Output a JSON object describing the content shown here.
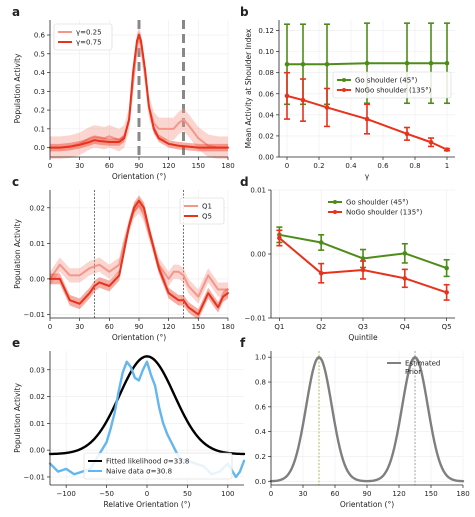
{
  "chart_data": [
    {
      "panel": "a",
      "type": "line",
      "xlabel": "Orientation (°)",
      "ylabel": "Population Activity",
      "xlim": [
        0,
        180
      ],
      "ylim": [
        -0.05,
        0.68
      ],
      "xticks": [
        0,
        30,
        60,
        90,
        120,
        150,
        180
      ],
      "yticks": [
        0.0,
        0.1,
        0.2,
        0.3,
        0.4,
        0.5,
        0.6
      ],
      "ytick_labels": [
        "0.0",
        "0.1",
        "0.2",
        "0.3",
        "0.4",
        "0.5",
        "0.6"
      ],
      "legend_position": "top-left",
      "vlines": [
        90,
        135
      ],
      "series": [
        {
          "name": "γ=0.25",
          "color": "#f4978a",
          "band": 0.06,
          "x": [
            0,
            10,
            20,
            30,
            40,
            45,
            50,
            55,
            60,
            65,
            70,
            75,
            80,
            84,
            88,
            90,
            92,
            96,
            100,
            105,
            110,
            115,
            120,
            125,
            130,
            135,
            140,
            150,
            160,
            170,
            180
          ],
          "y": [
            0.0,
            0.0,
            0.005,
            0.02,
            0.05,
            0.06,
            0.055,
            0.05,
            0.06,
            0.05,
            0.04,
            0.06,
            0.15,
            0.35,
            0.55,
            0.58,
            0.55,
            0.4,
            0.22,
            0.13,
            0.1,
            0.1,
            0.1,
            0.1,
            0.13,
            0.15,
            0.12,
            0.05,
            0.01,
            0.0,
            0.0
          ]
        },
        {
          "name": "γ=0.75",
          "color": "#e8321c",
          "band": 0.02,
          "x": [
            0,
            10,
            20,
            30,
            40,
            45,
            50,
            60,
            70,
            75,
            80,
            84,
            88,
            90,
            92,
            96,
            100,
            105,
            110,
            120,
            130,
            140,
            150,
            160,
            170,
            180
          ],
          "y": [
            0.0,
            0.0,
            0.005,
            0.015,
            0.03,
            0.04,
            0.035,
            0.03,
            0.03,
            0.05,
            0.15,
            0.4,
            0.57,
            0.6,
            0.57,
            0.42,
            0.22,
            0.1,
            0.05,
            0.02,
            0.01,
            0.005,
            0.0,
            0.0,
            0.0,
            0.0
          ]
        }
      ]
    },
    {
      "panel": "b",
      "type": "line",
      "xlabel": "γ",
      "ylabel": "Mean Activity at Shoulder Index",
      "xlim": [
        -0.05,
        1.05
      ],
      "ylim": [
        0.0,
        0.13
      ],
      "xticks": [
        0.0,
        0.2,
        0.4,
        0.6,
        0.8,
        1.0
      ],
      "yticks": [
        0.0,
        0.02,
        0.04,
        0.06,
        0.08,
        0.1,
        0.12
      ],
      "ytick_labels": [
        "0.00",
        "0.02",
        "0.04",
        "0.06",
        "0.08",
        "0.10",
        "0.12"
      ],
      "legend_position": "center-right",
      "series": [
        {
          "name": "Go shoulder (45°)",
          "color": "#4e8c1a",
          "x": [
            0.0,
            0.1,
            0.25,
            0.5,
            0.75,
            0.9,
            1.0
          ],
          "y": [
            0.088,
            0.088,
            0.088,
            0.089,
            0.089,
            0.089,
            0.089
          ],
          "err": [
            0.038,
            0.038,
            0.038,
            0.038,
            0.038,
            0.038,
            0.038
          ]
        },
        {
          "name": "NoGo shoulder (135°)",
          "color": "#e8321c",
          "x": [
            0.0,
            0.1,
            0.25,
            0.5,
            0.75,
            0.9,
            1.0
          ],
          "y": [
            0.058,
            0.054,
            0.047,
            0.036,
            0.022,
            0.014,
            0.007
          ],
          "err": [
            0.022,
            0.02,
            0.018,
            0.014,
            0.006,
            0.004,
            0.001
          ]
        }
      ]
    },
    {
      "panel": "c",
      "type": "line",
      "xlabel": "Orientation (°)",
      "ylabel": "Population Activity",
      "xlim": [
        0,
        180
      ],
      "ylim": [
        -0.011,
        0.025
      ],
      "xticks": [
        0,
        30,
        60,
        90,
        120,
        150,
        180
      ],
      "yticks": [
        -0.01,
        0.0,
        0.01,
        0.02
      ],
      "ytick_labels": [
        "−0.01",
        "0.00",
        "0.01",
        "0.02"
      ],
      "legend_position": "top-right",
      "vlines": [
        45,
        135
      ],
      "series": [
        {
          "name": "Q1",
          "color": "#f4978a",
          "band": 0.002,
          "x": [
            0,
            10,
            20,
            30,
            40,
            45,
            50,
            60,
            70,
            75,
            80,
            85,
            90,
            95,
            100,
            110,
            120,
            125,
            130,
            135,
            140,
            150,
            160,
            170,
            175,
            180
          ],
          "y": [
            0.0,
            0.004,
            0.001,
            0.001,
            0.003,
            0.0035,
            0.004,
            0.002,
            0.004,
            0.01,
            0.015,
            0.019,
            0.0205,
            0.018,
            0.013,
            0.004,
            0.0,
            0.002,
            0.002,
            0.001,
            -0.002,
            -0.005,
            0.001,
            -0.003,
            -0.003,
            -0.003
          ]
        },
        {
          "name": "Q5",
          "color": "#e8321c",
          "band": 0.0015,
          "x": [
            0,
            10,
            20,
            30,
            40,
            45,
            50,
            60,
            70,
            75,
            80,
            85,
            90,
            95,
            100,
            110,
            120,
            125,
            130,
            135,
            140,
            150,
            160,
            170,
            175,
            180
          ],
          "y": [
            0.0,
            0.0,
            -0.006,
            -0.007,
            -0.004,
            -0.002,
            -0.001,
            -0.002,
            0.001,
            0.008,
            0.015,
            0.02,
            0.022,
            0.02,
            0.014,
            0.003,
            -0.004,
            -0.005,
            -0.006,
            -0.006,
            -0.008,
            -0.01,
            -0.004,
            -0.008,
            -0.005,
            -0.004
          ]
        }
      ]
    },
    {
      "panel": "d",
      "type": "line",
      "xlabel": "Quintile",
      "ylabel": "",
      "categories": [
        "Q1",
        "Q2",
        "Q3",
        "Q4",
        "Q5"
      ],
      "ylim": [
        -0.01,
        0.01
      ],
      "yticks": [
        -0.01,
        0.0,
        0.01
      ],
      "ytick_labels": [
        "−0.01",
        "0.00",
        "0.01"
      ],
      "legend_position": "top-right",
      "series": [
        {
          "name": "Go shoulder (45°)",
          "color": "#4e8c1a",
          "values": [
            0.003,
            0.0018,
            -0.0007,
            0.0001,
            -0.0022
          ],
          "err": [
            0.0012,
            0.0012,
            0.0014,
            0.0015,
            0.0013
          ]
        },
        {
          "name": "NoGo shoulder (135°)",
          "color": "#e8321c",
          "values": [
            0.0025,
            -0.003,
            -0.0025,
            -0.0038,
            -0.006
          ],
          "err": [
            0.0012,
            0.0015,
            0.0014,
            0.0014,
            0.0012
          ]
        }
      ]
    },
    {
      "panel": "e",
      "type": "line",
      "xlabel": "Relative Orientation (°)",
      "ylabel": "Population Activity",
      "xlim": [
        -120,
        120
      ],
      "ylim": [
        -0.013,
        0.037
      ],
      "xticks": [
        -100,
        -50,
        0,
        50,
        100
      ],
      "xtick_labels": [
        "−100",
        "−50",
        "0",
        "50",
        "100"
      ],
      "yticks": [
        -0.01,
        0.0,
        0.01,
        0.02,
        0.03
      ],
      "ytick_labels": [
        "−0.01",
        "0.00",
        "0.01",
        "0.02",
        "0.03"
      ],
      "legend_position": "bottom-right",
      "series": [
        {
          "name": "Fitted likelihood σ=33.8",
          "color": "#000000",
          "sigma": 33.8,
          "amplitude": 0.0365,
          "offset": -0.0015
        },
        {
          "name": "Naive data σ=30.8",
          "color": "#63b6f0",
          "x": [
            -120,
            -110,
            -100,
            -90,
            -80,
            -70,
            -60,
            -50,
            -45,
            -40,
            -35,
            -30,
            -25,
            -20,
            -15,
            -10,
            -5,
            0,
            5,
            10,
            15,
            20,
            25,
            30,
            35,
            40,
            50,
            60,
            70,
            80,
            90,
            100,
            110,
            115,
            120
          ],
          "y": [
            -0.005,
            -0.008,
            -0.007,
            -0.009,
            -0.008,
            -0.007,
            -0.002,
            0.003,
            0.008,
            0.014,
            0.022,
            0.029,
            0.033,
            0.031,
            0.027,
            0.026,
            0.03,
            0.033,
            0.028,
            0.024,
            0.016,
            0.01,
            0.006,
            0.003,
            0.0,
            -0.003,
            -0.004,
            -0.005,
            -0.006,
            -0.009,
            -0.008,
            -0.005,
            -0.01,
            -0.008,
            -0.004
          ]
        }
      ]
    },
    {
      "panel": "f",
      "type": "line",
      "xlabel": "Orientation (°)",
      "ylabel": "",
      "xlim": [
        0,
        180
      ],
      "ylim": [
        -0.03,
        1.05
      ],
      "xticks": [
        0,
        30,
        60,
        90,
        120,
        150,
        180
      ],
      "yticks": [
        0.0,
        0.2,
        0.4,
        0.6,
        0.8,
        1.0
      ],
      "ytick_labels": [
        "0.0",
        "0.2",
        "0.4",
        "0.6",
        "0.8",
        "1.0"
      ],
      "legend_position": "top-right",
      "vlines": [
        45,
        135
      ],
      "vline_colors": [
        "#9aaa3a",
        "#8c8c8c"
      ],
      "series": [
        {
          "name": "Estimated Prior",
          "color": "#7f7f7f",
          "peaks": [
            45,
            135
          ],
          "sigma": 12
        }
      ]
    }
  ]
}
